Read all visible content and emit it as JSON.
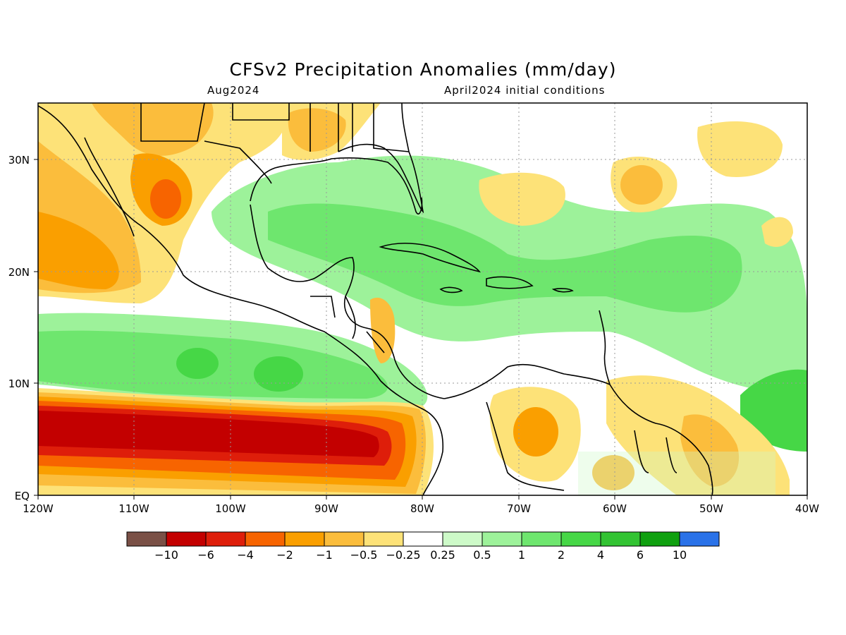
{
  "title": "CFSv2 Precipitation Anomalies (mm/day)",
  "valid_month": "Aug2024",
  "init_text": "April2024 initial conditions",
  "lat_labels": [
    "30N",
    "20N",
    "10N",
    "EQ"
  ],
  "lon_labels": [
    "120W",
    "110W",
    "100W",
    "90W",
    "80W",
    "70W",
    "60W",
    "50W",
    "40W"
  ],
  "colorbar": {
    "colors": [
      "#7a5046",
      "#c30000",
      "#de1e0a",
      "#f76400",
      "#fa9f00",
      "#fbbd3c",
      "#fde278",
      "#ffffff",
      "#cdfac8",
      "#9df29a",
      "#6ee66e",
      "#46d746",
      "#32c332",
      "#0fa00f",
      "#2a72e8"
    ],
    "labels": [
      "−10",
      "−6",
      "−4",
      "−2",
      "−1",
      "−0.5",
      "−0.25",
      "0.25",
      "0.5",
      "1",
      "2",
      "4",
      "6",
      "10"
    ]
  },
  "palette": {
    "wet1": "#cdfac8",
    "wet2": "#9df29a",
    "wet3": "#6ee66e",
    "wet4": "#46d746",
    "wet5": "#32c332",
    "wet6": "#0fa00f",
    "dry1": "#fde278",
    "dry2": "#fbbd3c",
    "dry3": "#fa9f00",
    "dry4": "#f76400",
    "dry5": "#de1e0a",
    "dry6": "#c30000"
  }
}
